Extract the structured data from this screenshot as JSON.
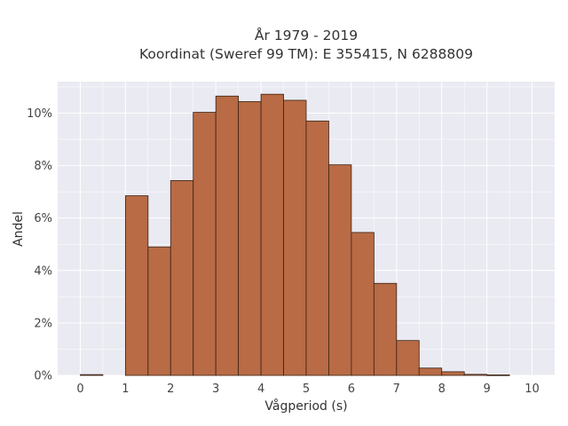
{
  "chart_data": {
    "type": "bar",
    "title": "År 1979 - 2019",
    "subtitle": "Koordinat (Sweref 99 TM): E 355415, N 6288809",
    "xlabel": "Vågperiod (s)",
    "ylabel": "Andel",
    "bin_width": 0.5,
    "bins": [
      0,
      0.5,
      1,
      1.5,
      2,
      2.5,
      3,
      3.5,
      4,
      4.5,
      5,
      5.5,
      6,
      6.5,
      7,
      7.5,
      8,
      8.5,
      9,
      9.5
    ],
    "values": [
      0.03,
      0,
      6.85,
      4.9,
      7.43,
      10.03,
      10.65,
      10.44,
      10.72,
      10.49,
      9.7,
      8.03,
      5.45,
      3.51,
      1.33,
      0.28,
      0.14,
      0.04,
      0.02,
      0
    ],
    "xlim": [
      -0.5,
      10.5
    ],
    "ylim": [
      0,
      11.2
    ],
    "xticks": [
      0,
      1,
      2,
      3,
      4,
      5,
      6,
      7,
      8,
      9,
      10
    ],
    "xtick_labels": [
      "0",
      "1",
      "2",
      "3",
      "4",
      "5",
      "6",
      "7",
      "8",
      "9",
      "10"
    ],
    "yticks": [
      0,
      2,
      4,
      6,
      8,
      10
    ],
    "ytick_labels": [
      "0%",
      "2%",
      "4%",
      "6%",
      "8%",
      "10%"
    ],
    "grid": true,
    "colors": {
      "bar_fill": "#b86b45",
      "bar_edge": "#3a2214",
      "plot_bg": "#eaeaf2",
      "grid": "#ffffff"
    }
  }
}
